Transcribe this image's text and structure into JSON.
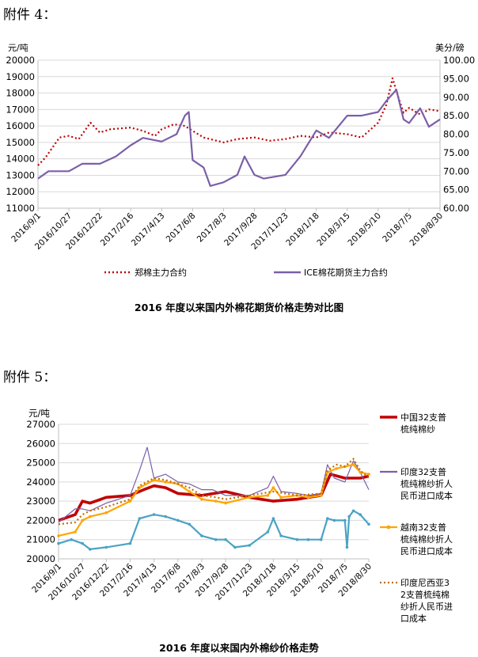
{
  "headings": {
    "first": "附件 4：",
    "second": "附件 5："
  },
  "chart_data": [
    {
      "type": "line",
      "title": "2016 年度以来国内外棉花期货价格走势对比图",
      "ylabel_left": "元/吨",
      "ylabel_right": "美分/磅",
      "ylim_left": [
        11000,
        20000
      ],
      "ylim_right": [
        60,
        100
      ],
      "yticks_left": [
        "11000",
        "12000",
        "13000",
        "14000",
        "15000",
        "16000",
        "17000",
        "18000",
        "19000",
        "20000"
      ],
      "yticks_right": [
        "60.00",
        "65.00",
        "70.00",
        "75.00",
        "80.00",
        "85.00",
        "90.00",
        "95.00",
        "100.00"
      ],
      "x_tick_labels": [
        "2016/9/1",
        "2016/10/27",
        "2016/12/22",
        "2017/2/16",
        "2017/4/13",
        "2017/6/8",
        "2017/8/3",
        "2017/9/28",
        "2017/11/23",
        "2018/1/18",
        "2018/3/15",
        "2018/5/10",
        "2018/7/5",
        "2018/8/30"
      ],
      "grid": true,
      "legend_position": "bottom",
      "series": [
        {
          "name": "郑棉主力合约",
          "axis": "left",
          "color": "#c00000",
          "style": "dotted",
          "x": [
            "2016/9/1",
            "2016/9/15",
            "2016/10/10",
            "2016/10/27",
            "2016/11/14",
            "2016/12/5",
            "2016/12/22",
            "2017/1/10",
            "2017/2/16",
            "2017/3/10",
            "2017/4/1",
            "2017/4/13",
            "2017/5/5",
            "2017/5/25",
            "2017/6/8",
            "2017/6/28",
            "2017/8/3",
            "2017/8/28",
            "2017/9/28",
            "2017/10/26",
            "2017/11/23",
            "2017/12/20",
            "2018/1/18",
            "2018/2/10",
            "2018/3/15",
            "2018/4/10",
            "2018/5/10",
            "2018/5/25",
            "2018/6/5",
            "2018/6/15",
            "2018/6/25",
            "2018/7/5",
            "2018/7/25",
            "2018/8/10",
            "2018/8/30"
          ],
          "values": [
            13600,
            14100,
            15300,
            15400,
            15200,
            16200,
            15600,
            15800,
            15900,
            15700,
            15400,
            15800,
            16100,
            16000,
            15700,
            15300,
            15000,
            15200,
            15300,
            15100,
            15200,
            15400,
            15300,
            15600,
            15500,
            15300,
            16200,
            17300,
            18900,
            17800,
            16800,
            17100,
            16700,
            17000,
            16900
          ]
        },
        {
          "name": "ICE棉花期货主力合约",
          "axis": "right",
          "color": "#7b5fa8",
          "style": "solid",
          "x": [
            "2016/9/1",
            "2016/9/20",
            "2016/10/27",
            "2016/11/20",
            "2016/12/22",
            "2017/1/20",
            "2017/2/16",
            "2017/3/10",
            "2017/4/13",
            "2017/5/10",
            "2017/5/25",
            "2017/6/1",
            "2017/6/8",
            "2017/6/28",
            "2017/7/10",
            "2017/8/3",
            "2017/8/28",
            "2017/9/10",
            "2017/9/28",
            "2017/10/15",
            "2017/11/23",
            "2017/12/20",
            "2018/1/18",
            "2018/2/10",
            "2018/3/15",
            "2018/4/10",
            "2018/5/10",
            "2018/5/25",
            "2018/6/12",
            "2018/6/25",
            "2018/7/5",
            "2018/7/25",
            "2018/8/10",
            "2018/8/30"
          ],
          "values": [
            68,
            70,
            70,
            72,
            72,
            74,
            77,
            79,
            78,
            80,
            85,
            86,
            73,
            71,
            66,
            67,
            69,
            74,
            69,
            68,
            69,
            74,
            81,
            79,
            85,
            85,
            86,
            89,
            92,
            84,
            83,
            87,
            82,
            84
          ]
        }
      ]
    },
    {
      "type": "line",
      "title": "2016 年度以来国内外棉纱价格走势",
      "ylabel": "元/吨",
      "ylim": [
        20000,
        27000
      ],
      "yticks": [
        "20000",
        "21000",
        "22000",
        "23000",
        "24000",
        "25000",
        "26000",
        "27000"
      ],
      "x_tick_labels": [
        "2016/9/1",
        "2016/10/27",
        "2016/12/22",
        "2017/2/16",
        "2017/4/13",
        "2017/6/8",
        "2017/8/3",
        "2017/9/28",
        "2017/11/23",
        "2018/1/18",
        "2018/3/15",
        "2018/5/10",
        "2018/7/5",
        "2018/8/30"
      ],
      "grid": true,
      "legend_position": "right",
      "series": [
        {
          "name": "中国32支普梳纯棉纱",
          "color": "#c00000",
          "style": "solid-thick",
          "x": [
            "2016/9/1",
            "2016/10/10",
            "2016/10/27",
            "2016/11/14",
            "2016/12/22",
            "2017/2/16",
            "2017/3/20",
            "2017/4/13",
            "2017/5/10",
            "2017/6/8",
            "2017/8/3",
            "2017/9/28",
            "2017/11/23",
            "2018/1/18",
            "2018/3/15",
            "2018/5/10",
            "2018/6/1",
            "2018/7/5",
            "2018/8/10",
            "2018/8/30"
          ],
          "values": [
            22000,
            22300,
            23000,
            22900,
            23200,
            23300,
            23600,
            23800,
            23700,
            23400,
            23300,
            23500,
            23200,
            23000,
            23100,
            23300,
            24400,
            24200,
            24200,
            24300
          ]
        },
        {
          "name": "印度32支普梳纯棉纱折人民币进口成本",
          "color": "#7b5fa8",
          "style": "solid-thin",
          "x": [
            "2016/9/1",
            "2016/10/10",
            "2016/10/27",
            "2016/11/14",
            "2016/12/22",
            "2017/2/16",
            "2017/3/10",
            "2017/3/28",
            "2017/4/13",
            "2017/5/10",
            "2017/6/8",
            "2017/7/5",
            "2017/8/3",
            "2017/8/28",
            "2017/9/28",
            "2017/11/23",
            "2018/1/5",
            "2018/1/18",
            "2018/2/5",
            "2018/3/15",
            "2018/4/10",
            "2018/5/10",
            "2018/5/25",
            "2018/6/10",
            "2018/7/5",
            "2018/7/25",
            "2018/8/10",
            "2018/8/30"
          ],
          "values": [
            21900,
            22600,
            22600,
            22500,
            22900,
            23300,
            24600,
            25800,
            24200,
            24400,
            24000,
            23900,
            23600,
            23600,
            23300,
            23300,
            23700,
            24300,
            23500,
            23400,
            23300,
            23400,
            24900,
            24200,
            24000,
            25100,
            24500,
            23600
          ]
        },
        {
          "name": "越南32支普梳纯棉纱折人民币进口成本",
          "color": "#ffa500",
          "style": "solid-markers",
          "x": [
            "2016/9/1",
            "2016/10/10",
            "2016/10/27",
            "2016/11/14",
            "2016/12/22",
            "2017/2/16",
            "2017/3/10",
            "2017/4/13",
            "2017/5/10",
            "2017/6/8",
            "2017/7/5",
            "2017/8/3",
            "2017/9/5",
            "2017/9/28",
            "2017/11/23",
            "2018/1/5",
            "2018/1/18",
            "2018/2/5",
            "2018/3/15",
            "2018/4/10",
            "2018/5/10",
            "2018/5/25",
            "2018/6/15",
            "2018/7/5",
            "2018/7/25",
            "2018/8/10",
            "2018/8/30"
          ],
          "values": [
            21200,
            21400,
            22000,
            22200,
            22400,
            23000,
            23700,
            24100,
            24000,
            23900,
            23500,
            23100,
            23000,
            22900,
            23200,
            23300,
            23700,
            23200,
            23300,
            23200,
            23300,
            24500,
            24700,
            24800,
            24900,
            24500,
            24400
          ]
        },
        {
          "name": "印度尼西亚32支普梳纯棉纱折人民币进口成本",
          "color": "#c07000",
          "style": "dotted",
          "x": [
            "2016/9/1",
            "2016/10/10",
            "2016/10/27",
            "2016/11/14",
            "2016/12/22",
            "2017/2/16",
            "2017/3/10",
            "2017/4/13",
            "2017/5/10",
            "2017/6/8",
            "2017/7/5",
            "2017/8/3",
            "2017/9/5",
            "2017/9/28",
            "2017/11/23",
            "2018/1/18",
            "2018/3/15",
            "2018/5/10",
            "2018/5/25",
            "2018/6/15",
            "2018/7/5",
            "2018/7/25",
            "2018/8/10",
            "2018/8/30"
          ],
          "values": [
            21800,
            21900,
            22300,
            22500,
            22700,
            23100,
            23800,
            24200,
            24100,
            23900,
            23700,
            23300,
            23200,
            23100,
            23300,
            23500,
            23300,
            23400,
            24600,
            24900,
            24800,
            25200,
            24600,
            24200
          ]
        },
        {
          "name": "",
          "color": "#4aa3c4",
          "style": "solid-markers-cyan",
          "x": [
            "2016/9/1",
            "2016/10/1",
            "2016/10/27",
            "2016/11/14",
            "2016/12/22",
            "2017/2/16",
            "2017/3/10",
            "2017/4/13",
            "2017/5/10",
            "2017/6/8",
            "2017/7/5",
            "2017/8/3",
            "2017/9/5",
            "2017/9/28",
            "2017/10/20",
            "2017/11/23",
            "2018/1/5",
            "2018/1/18",
            "2018/2/5",
            "2018/3/15",
            "2018/4/10",
            "2018/5/10",
            "2018/5/25",
            "2018/6/10",
            "2018/7/5",
            "2018/7/10",
            "2018/7/15",
            "2018/7/25",
            "2018/8/10",
            "2018/8/30"
          ],
          "values": [
            20800,
            21000,
            20800,
            20500,
            20600,
            20800,
            22100,
            22300,
            22200,
            22000,
            21800,
            21200,
            21000,
            21000,
            20600,
            20700,
            21400,
            22100,
            21200,
            21000,
            21000,
            21000,
            22100,
            22000,
            22000,
            20600,
            22200,
            22500,
            22300,
            21800
          ]
        }
      ]
    }
  ]
}
